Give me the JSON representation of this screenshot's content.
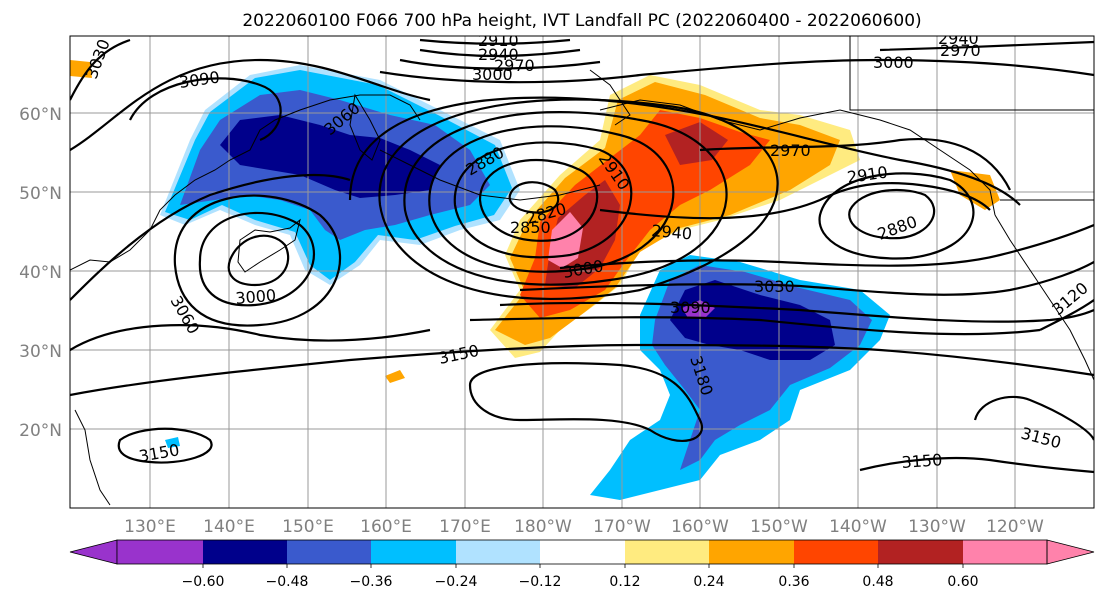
{
  "title": "2022060100 F066 700 hPa height, IVT Landfall PC (2022060400 - 2022060600)",
  "map": {
    "lat_labels": [
      "60°N",
      "50°N",
      "40°N",
      "30°N",
      "20°N"
    ],
    "lon_labels": [
      "130°E",
      "140°E",
      "150°E",
      "160°E",
      "170°E",
      "180°W",
      "170°W",
      "160°W",
      "150°W",
      "140°W",
      "130°W",
      "120°W"
    ],
    "contour_labels": [
      "3030",
      "3090",
      "3060",
      "2910",
      "2940",
      "2970",
      "3000",
      "2970",
      "3000",
      "2940",
      "2880",
      "2910",
      "2970",
      "2910",
      "2880",
      "2820",
      "2850",
      "2940",
      "3000",
      "3000",
      "3030",
      "3090",
      "3060",
      "3150",
      "3180",
      "3150",
      "3150",
      "3150",
      "3120"
    ]
  },
  "colorbar": {
    "tick_labels": [
      "−0.60",
      "−0.48",
      "−0.36",
      "−0.24",
      "−0.12",
      "0.12",
      "0.24",
      "0.36",
      "0.48",
      "0.60"
    ],
    "colors": [
      "#9933cc",
      "#00008b",
      "#3a5acd",
      "#00bfff",
      "#b0e2ff",
      "#ffffff",
      "#ffeb80",
      "#ffa500",
      "#ff4500",
      "#b22222",
      "#ff82ab"
    ]
  },
  "colors": {
    "grid": "#999999",
    "contour": "#000000",
    "axis_label": "#808080"
  }
}
